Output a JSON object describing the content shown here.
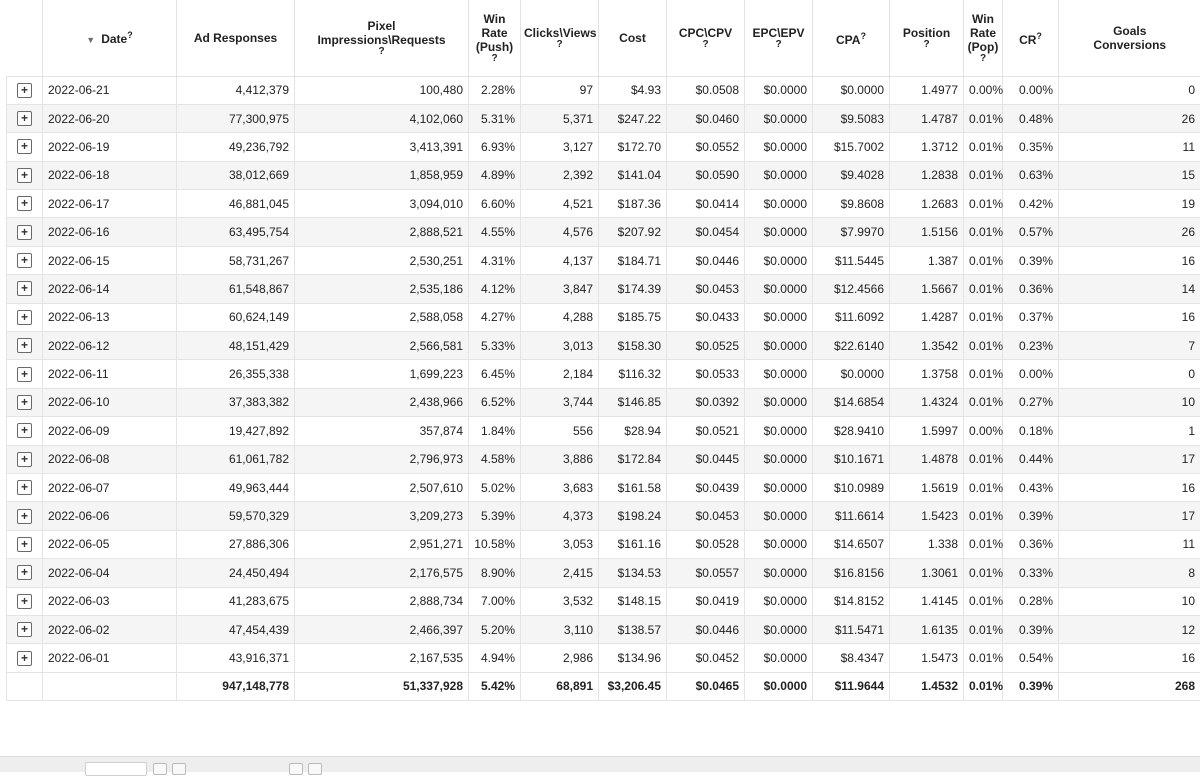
{
  "header": {
    "date": "Date",
    "ad_responses": "Ad Responses",
    "pixel_line1": "Pixel",
    "pixel_line2": "Impressions\\Requests",
    "winrate_push_line1": "Win",
    "winrate_push_line2": "Rate",
    "winrate_push_line3": "(Push)",
    "clicks_views": "Clicks\\Views",
    "cost": "Cost",
    "cpc_cpv": "CPC\\CPV",
    "epc_epv": "EPC\\EPV",
    "cpa": "CPA",
    "position": "Position",
    "winrate_pop_line1": "Win",
    "winrate_pop_line2": "Rate",
    "winrate_pop_line3": "(Pop)",
    "cr": "CR",
    "goals_line1": "Goals",
    "goals_line2": "Conversions",
    "help_mark": "?"
  },
  "rows": [
    {
      "date": "2022-06-21",
      "ad_responses": "4,412,379",
      "pixel": "100,480",
      "win_push": "2.28%",
      "clicks": "97",
      "cost": "$4.93",
      "cpc": "$0.0508",
      "epc": "$0.0000",
      "cpa": "$0.0000",
      "position": "1.4977",
      "win_pop": "0.00%",
      "cr": "0.00%",
      "goals": "0"
    },
    {
      "date": "2022-06-20",
      "ad_responses": "77,300,975",
      "pixel": "4,102,060",
      "win_push": "5.31%",
      "clicks": "5,371",
      "cost": "$247.22",
      "cpc": "$0.0460",
      "epc": "$0.0000",
      "cpa": "$9.5083",
      "position": "1.4787",
      "win_pop": "0.01%",
      "cr": "0.48%",
      "goals": "26"
    },
    {
      "date": "2022-06-19",
      "ad_responses": "49,236,792",
      "pixel": "3,413,391",
      "win_push": "6.93%",
      "clicks": "3,127",
      "cost": "$172.70",
      "cpc": "$0.0552",
      "epc": "$0.0000",
      "cpa": "$15.7002",
      "position": "1.3712",
      "win_pop": "0.01%",
      "cr": "0.35%",
      "goals": "11"
    },
    {
      "date": "2022-06-18",
      "ad_responses": "38,012,669",
      "pixel": "1,858,959",
      "win_push": "4.89%",
      "clicks": "2,392",
      "cost": "$141.04",
      "cpc": "$0.0590",
      "epc": "$0.0000",
      "cpa": "$9.4028",
      "position": "1.2838",
      "win_pop": "0.01%",
      "cr": "0.63%",
      "goals": "15"
    },
    {
      "date": "2022-06-17",
      "ad_responses": "46,881,045",
      "pixel": "3,094,010",
      "win_push": "6.60%",
      "clicks": "4,521",
      "cost": "$187.36",
      "cpc": "$0.0414",
      "epc": "$0.0000",
      "cpa": "$9.8608",
      "position": "1.2683",
      "win_pop": "0.01%",
      "cr": "0.42%",
      "goals": "19"
    },
    {
      "date": "2022-06-16",
      "ad_responses": "63,495,754",
      "pixel": "2,888,521",
      "win_push": "4.55%",
      "clicks": "4,576",
      "cost": "$207.92",
      "cpc": "$0.0454",
      "epc": "$0.0000",
      "cpa": "$7.9970",
      "position": "1.5156",
      "win_pop": "0.01%",
      "cr": "0.57%",
      "goals": "26"
    },
    {
      "date": "2022-06-15",
      "ad_responses": "58,731,267",
      "pixel": "2,530,251",
      "win_push": "4.31%",
      "clicks": "4,137",
      "cost": "$184.71",
      "cpc": "$0.0446",
      "epc": "$0.0000",
      "cpa": "$11.5445",
      "position": "1.387",
      "win_pop": "0.01%",
      "cr": "0.39%",
      "goals": "16"
    },
    {
      "date": "2022-06-14",
      "ad_responses": "61,548,867",
      "pixel": "2,535,186",
      "win_push": "4.12%",
      "clicks": "3,847",
      "cost": "$174.39",
      "cpc": "$0.0453",
      "epc": "$0.0000",
      "cpa": "$12.4566",
      "position": "1.5667",
      "win_pop": "0.01%",
      "cr": "0.36%",
      "goals": "14"
    },
    {
      "date": "2022-06-13",
      "ad_responses": "60,624,149",
      "pixel": "2,588,058",
      "win_push": "4.27%",
      "clicks": "4,288",
      "cost": "$185.75",
      "cpc": "$0.0433",
      "epc": "$0.0000",
      "cpa": "$11.6092",
      "position": "1.4287",
      "win_pop": "0.01%",
      "cr": "0.37%",
      "goals": "16"
    },
    {
      "date": "2022-06-12",
      "ad_responses": "48,151,429",
      "pixel": "2,566,581",
      "win_push": "5.33%",
      "clicks": "3,013",
      "cost": "$158.30",
      "cpc": "$0.0525",
      "epc": "$0.0000",
      "cpa": "$22.6140",
      "position": "1.3542",
      "win_pop": "0.01%",
      "cr": "0.23%",
      "goals": "7"
    },
    {
      "date": "2022-06-11",
      "ad_responses": "26,355,338",
      "pixel": "1,699,223",
      "win_push": "6.45%",
      "clicks": "2,184",
      "cost": "$116.32",
      "cpc": "$0.0533",
      "epc": "$0.0000",
      "cpa": "$0.0000",
      "position": "1.3758",
      "win_pop": "0.01%",
      "cr": "0.00%",
      "goals": "0"
    },
    {
      "date": "2022-06-10",
      "ad_responses": "37,383,382",
      "pixel": "2,438,966",
      "win_push": "6.52%",
      "clicks": "3,744",
      "cost": "$146.85",
      "cpc": "$0.0392",
      "epc": "$0.0000",
      "cpa": "$14.6854",
      "position": "1.4324",
      "win_pop": "0.01%",
      "cr": "0.27%",
      "goals": "10"
    },
    {
      "date": "2022-06-09",
      "ad_responses": "19,427,892",
      "pixel": "357,874",
      "win_push": "1.84%",
      "clicks": "556",
      "cost": "$28.94",
      "cpc": "$0.0521",
      "epc": "$0.0000",
      "cpa": "$28.9410",
      "position": "1.5997",
      "win_pop": "0.00%",
      "cr": "0.18%",
      "goals": "1"
    },
    {
      "date": "2022-06-08",
      "ad_responses": "61,061,782",
      "pixel": "2,796,973",
      "win_push": "4.58%",
      "clicks": "3,886",
      "cost": "$172.84",
      "cpc": "$0.0445",
      "epc": "$0.0000",
      "cpa": "$10.1671",
      "position": "1.4878",
      "win_pop": "0.01%",
      "cr": "0.44%",
      "goals": "17"
    },
    {
      "date": "2022-06-07",
      "ad_responses": "49,963,444",
      "pixel": "2,507,610",
      "win_push": "5.02%",
      "clicks": "3,683",
      "cost": "$161.58",
      "cpc": "$0.0439",
      "epc": "$0.0000",
      "cpa": "$10.0989",
      "position": "1.5619",
      "win_pop": "0.01%",
      "cr": "0.43%",
      "goals": "16"
    },
    {
      "date": "2022-06-06",
      "ad_responses": "59,570,329",
      "pixel": "3,209,273",
      "win_push": "5.39%",
      "clicks": "4,373",
      "cost": "$198.24",
      "cpc": "$0.0453",
      "epc": "$0.0000",
      "cpa": "$11.6614",
      "position": "1.5423",
      "win_pop": "0.01%",
      "cr": "0.39%",
      "goals": "17"
    },
    {
      "date": "2022-06-05",
      "ad_responses": "27,886,306",
      "pixel": "2,951,271",
      "win_push": "10.58%",
      "clicks": "3,053",
      "cost": "$161.16",
      "cpc": "$0.0528",
      "epc": "$0.0000",
      "cpa": "$14.6507",
      "position": "1.338",
      "win_pop": "0.01%",
      "cr": "0.36%",
      "goals": "11"
    },
    {
      "date": "2022-06-04",
      "ad_responses": "24,450,494",
      "pixel": "2,176,575",
      "win_push": "8.90%",
      "clicks": "2,415",
      "cost": "$134.53",
      "cpc": "$0.0557",
      "epc": "$0.0000",
      "cpa": "$16.8156",
      "position": "1.3061",
      "win_pop": "0.01%",
      "cr": "0.33%",
      "goals": "8"
    },
    {
      "date": "2022-06-03",
      "ad_responses": "41,283,675",
      "pixel": "2,888,734",
      "win_push": "7.00%",
      "clicks": "3,532",
      "cost": "$148.15",
      "cpc": "$0.0419",
      "epc": "$0.0000",
      "cpa": "$14.8152",
      "position": "1.4145",
      "win_pop": "0.01%",
      "cr": "0.28%",
      "goals": "10"
    },
    {
      "date": "2022-06-02",
      "ad_responses": "47,454,439",
      "pixel": "2,466,397",
      "win_push": "5.20%",
      "clicks": "3,110",
      "cost": "$138.57",
      "cpc": "$0.0446",
      "epc": "$0.0000",
      "cpa": "$11.5471",
      "position": "1.6135",
      "win_pop": "0.01%",
      "cr": "0.39%",
      "goals": "12"
    },
    {
      "date": "2022-06-01",
      "ad_responses": "43,916,371",
      "pixel": "2,167,535",
      "win_push": "4.94%",
      "clicks": "2,986",
      "cost": "$134.96",
      "cpc": "$0.0452",
      "epc": "$0.0000",
      "cpa": "$8.4347",
      "position": "1.5473",
      "win_pop": "0.01%",
      "cr": "0.54%",
      "goals": "16"
    }
  ],
  "totals": {
    "ad_responses": "947,148,778",
    "pixel": "51,337,928",
    "win_push": "5.42%",
    "clicks": "68,891",
    "cost": "$3,206.45",
    "cpc": "$0.0465",
    "epc": "$0.0000",
    "cpa": "$11.9644",
    "position": "1.4532",
    "win_pop": "0.01%",
    "cr": "0.39%",
    "goals": "268"
  },
  "icons": {
    "expand": "plus-box-icon",
    "sort": "sort-down-icon"
  }
}
